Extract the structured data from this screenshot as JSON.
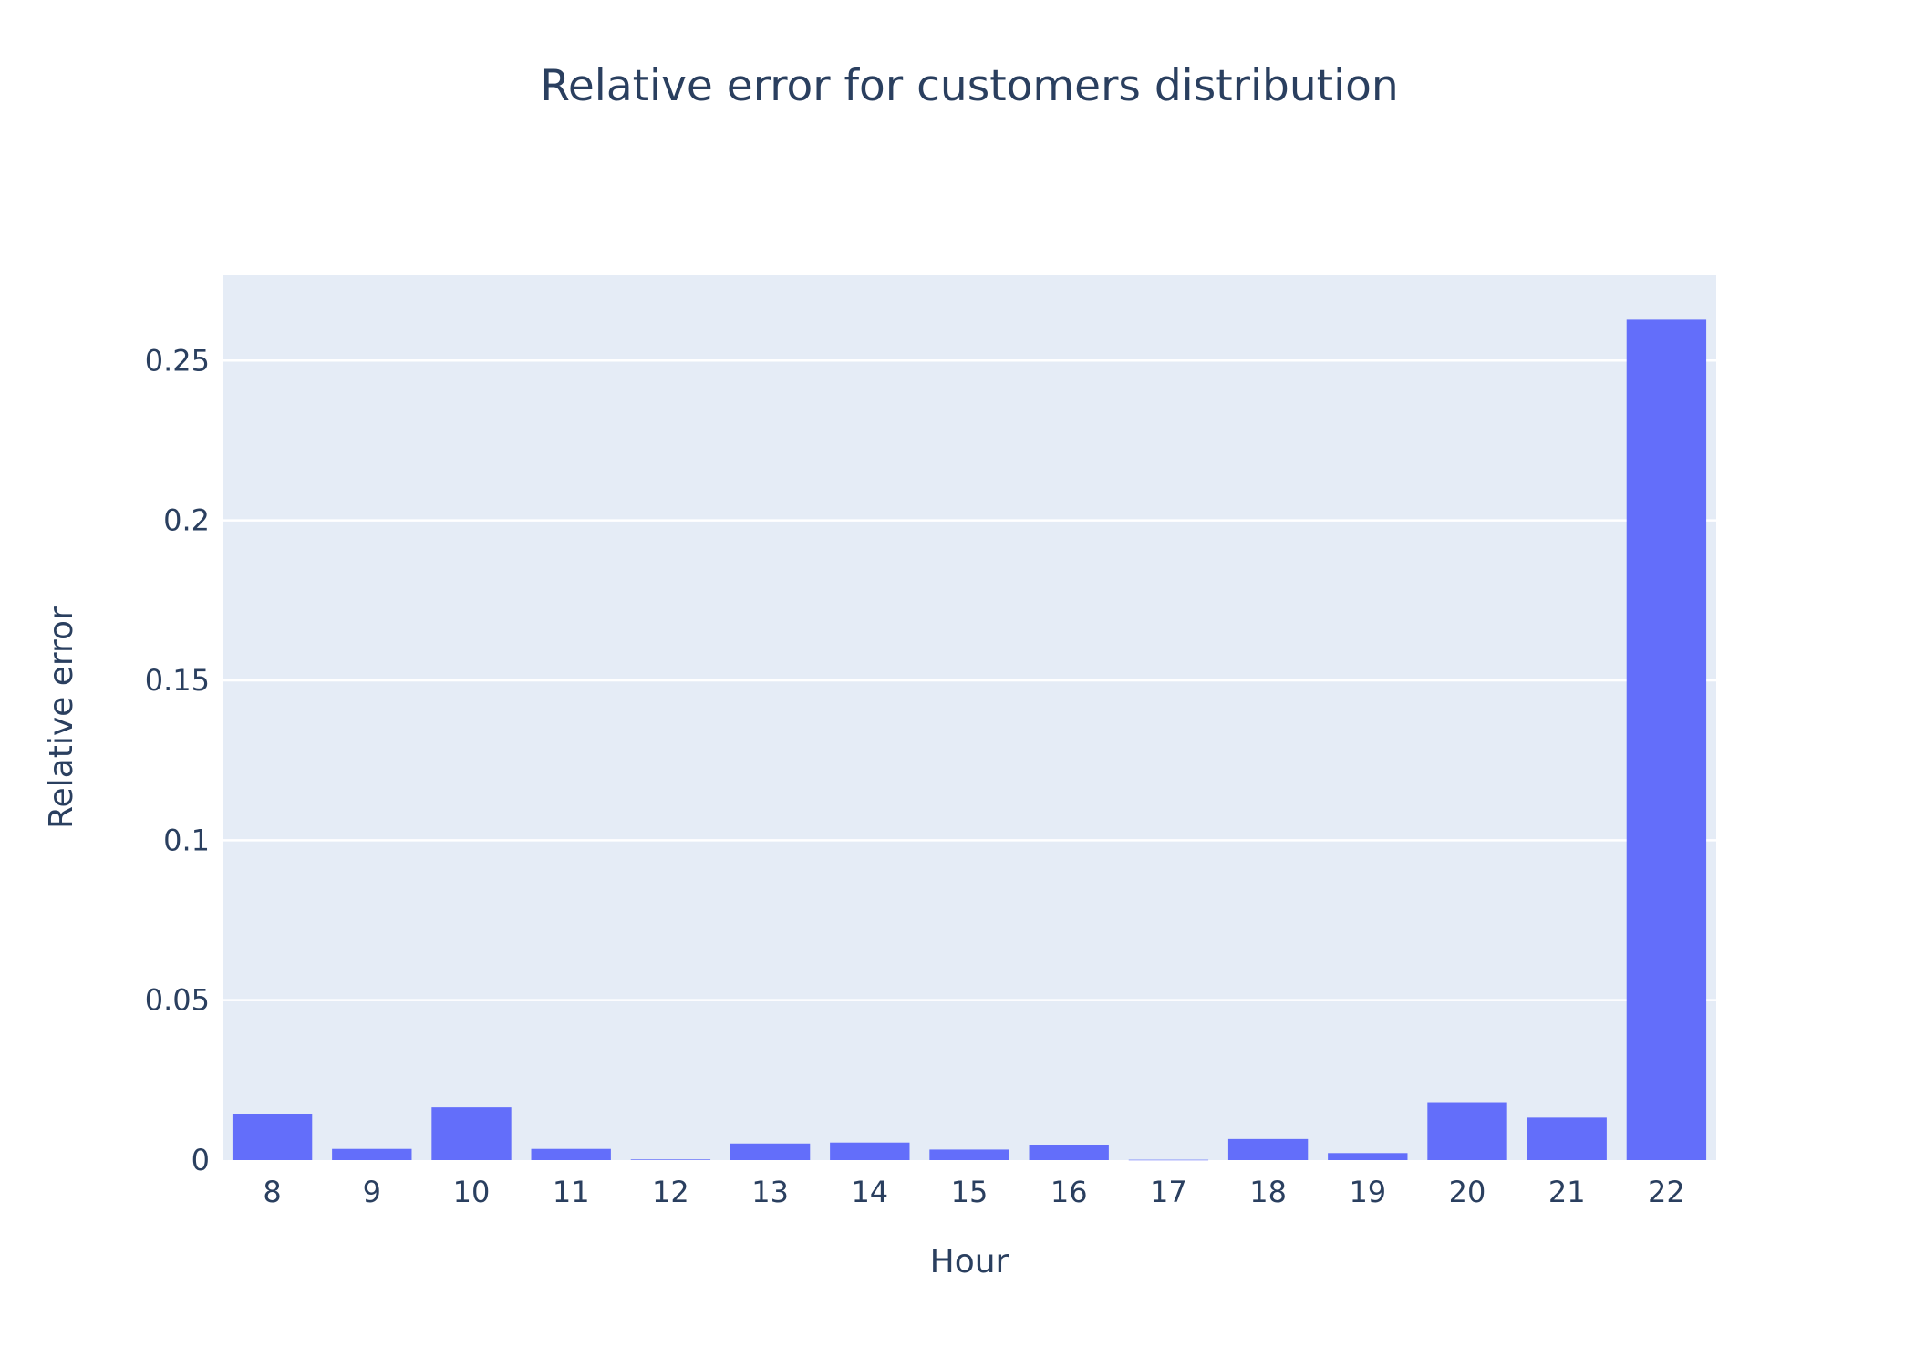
{
  "colors": {
    "plot_bg": "#e5ecf6",
    "grid": "#ffffff",
    "bar": "#636efa",
    "text": "#2a3f5f",
    "page_bg": "#ffffff"
  },
  "chart_data": {
    "type": "bar",
    "title": "Relative error for customers distribution",
    "xlabel": "Hour",
    "ylabel": "Relative error",
    "categories": [
      "8",
      "9",
      "10",
      "11",
      "12",
      "13",
      "14",
      "15",
      "16",
      "17",
      "18",
      "19",
      "20",
      "21",
      "22"
    ],
    "values": [
      0.0145,
      0.0035,
      0.0165,
      0.0035,
      0.0002,
      0.0052,
      0.0055,
      0.0033,
      0.0047,
      0.0001,
      0.0066,
      0.0022,
      0.0181,
      0.0133,
      0.2628
    ],
    "ylim": [
      0,
      0.2766
    ],
    "yticks": [
      0,
      0.05,
      0.1,
      0.15,
      0.2,
      0.25
    ],
    "ytick_labels": [
      "0",
      "0.05",
      "0.1",
      "0.15",
      "0.2",
      "0.25"
    ],
    "grid": true,
    "legend": "none"
  }
}
